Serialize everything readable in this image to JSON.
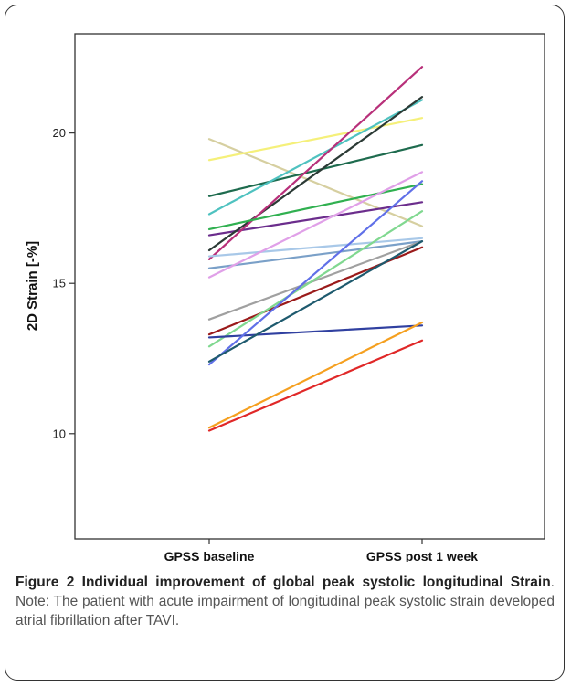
{
  "chart_data": {
    "type": "line",
    "ylabel": "2D Strain [-%]",
    "xlabel": "",
    "categories": [
      "GPSS baseline",
      "GPSS post 1 week"
    ],
    "ylim": [
      6.5,
      23.3
    ],
    "yticks": [
      10,
      15,
      20
    ],
    "grid": false,
    "series": [
      {
        "values": [
          19.8,
          16.9
        ],
        "color": "#d6cfa0"
      },
      {
        "values": [
          19.1,
          20.5
        ],
        "color": "#f5f07a"
      },
      {
        "values": [
          17.9,
          19.6
        ],
        "color": "#1e6b4e"
      },
      {
        "values": [
          17.3,
          21.1
        ],
        "color": "#4fc2c0"
      },
      {
        "values": [
          16.6,
          17.7
        ],
        "color": "#6b2d8c"
      },
      {
        "values": [
          16.1,
          21.2
        ],
        "color": "#2b3a35"
      },
      {
        "values": [
          15.8,
          22.2
        ],
        "color": "#b8307a"
      },
      {
        "values": [
          16.8,
          18.3
        ],
        "color": "#30b050"
      },
      {
        "values": [
          15.9,
          16.5
        ],
        "color": "#a8c8e8"
      },
      {
        "values": [
          15.5,
          16.4
        ],
        "color": "#7aa0c8"
      },
      {
        "values": [
          15.2,
          18.7
        ],
        "color": "#e0a0e8"
      },
      {
        "values": [
          13.8,
          16.4
        ],
        "color": "#a0a0a0"
      },
      {
        "values": [
          13.3,
          16.2
        ],
        "color": "#9a1a1a"
      },
      {
        "values": [
          12.9,
          17.4
        ],
        "color": "#80d890"
      },
      {
        "values": [
          13.2,
          13.6
        ],
        "color": "#3040a0"
      },
      {
        "values": [
          12.3,
          18.4
        ],
        "color": "#6070e8"
      },
      {
        "values": [
          12.4,
          16.4
        ],
        "color": "#1e5a6e"
      },
      {
        "values": [
          10.2,
          13.7
        ],
        "color": "#f5a020"
      },
      {
        "values": [
          10.1,
          13.1
        ],
        "color": "#e02828"
      }
    ]
  },
  "caption": {
    "figure_number": "Figure 2",
    "title_part1": "Individual improvement of global peak systolic",
    "title_part2": "longitudinal Strain",
    "text": ". Note: The patient with acute impairment of longitudinal peak systolic strain developed atrial fibrillation after TAVI."
  }
}
